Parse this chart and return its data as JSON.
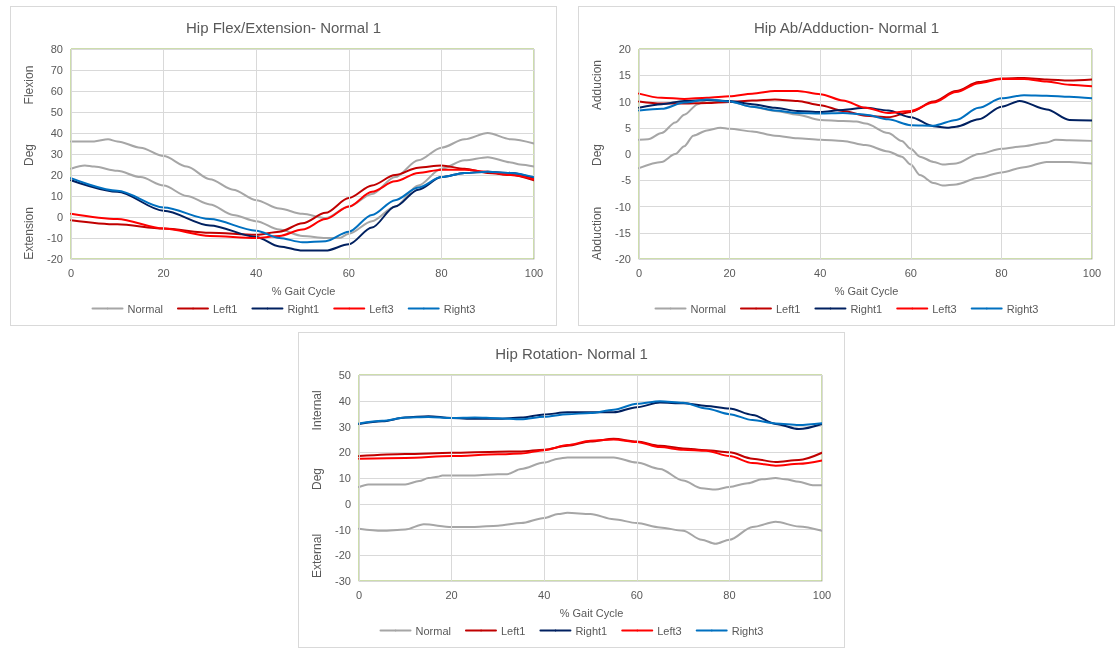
{
  "chart_data": [
    {
      "type": "line",
      "title": "Hip Flex/Extension- Normal 1",
      "xlabel": "% Gait Cycle",
      "ylabel": "Deg",
      "annotations": [
        "Flexion",
        "Extension"
      ],
      "xlim": [
        0,
        100
      ],
      "xticks": [
        0,
        20,
        40,
        60,
        80,
        100
      ],
      "ylim": [
        -20,
        80
      ],
      "yticks": [
        -20,
        -10,
        0,
        10,
        20,
        30,
        40,
        50,
        60,
        70,
        80
      ],
      "grid": true,
      "legend": "bottom",
      "line_style": "solid",
      "series": [
        {
          "name": "Normal",
          "color": "#a6a6a6",
          "x": [
            0,
            5,
            8,
            10,
            15,
            20,
            25,
            30,
            35,
            40,
            45,
            50,
            55,
            60,
            65,
            70,
            75,
            80,
            85,
            90,
            95,
            100
          ],
          "values": [
            36,
            36,
            37,
            36,
            33,
            29,
            24,
            18,
            13,
            8,
            4,
            1.5,
            -0.5,
            5,
            11,
            19,
            27,
            33,
            37,
            40,
            37,
            35
          ]
        },
        {
          "color": "#a6a6a6",
          "x": [
            0,
            3,
            5,
            10,
            15,
            20,
            25,
            30,
            35,
            40,
            45,
            50,
            55,
            58,
            60,
            65,
            70,
            75,
            80,
            85,
            90,
            95,
            97,
            100
          ],
          "values": [
            23,
            24.5,
            24,
            22,
            19,
            15,
            10,
            6,
            1,
            -2,
            -6,
            -9,
            -10,
            -10,
            -8,
            -2,
            5,
            15,
            23,
            27,
            28.5,
            26,
            25,
            24
          ]
        },
        {
          "name": "Left1",
          "color": "#c00000",
          "x": [
            0,
            10,
            20,
            30,
            40,
            45,
            50,
            55,
            60,
            65,
            70,
            75,
            80,
            85,
            90,
            95,
            100
          ],
          "values": [
            -1.5,
            -3.5,
            -5.5,
            -7.5,
            -8.5,
            -7,
            -3,
            2,
            9,
            15,
            20,
            23.5,
            24.5,
            23,
            21,
            20,
            17.5
          ]
        },
        {
          "name": "Right1",
          "color": "#002060",
          "x": [
            0,
            10,
            20,
            30,
            40,
            45,
            50,
            55,
            60,
            65,
            70,
            75,
            80,
            85,
            90,
            95,
            100
          ],
          "values": [
            17.5,
            12,
            3,
            -4,
            -9.5,
            -14,
            -16,
            -16,
            -13,
            -5,
            5,
            13,
            19,
            21,
            21.5,
            21,
            18.5
          ]
        },
        {
          "name": "Left3",
          "color": "#ff0000",
          "x": [
            0,
            10,
            20,
            30,
            40,
            45,
            50,
            55,
            60,
            65,
            70,
            75,
            80,
            85,
            90,
            95,
            100
          ],
          "values": [
            1.5,
            -1,
            -5.5,
            -9,
            -10,
            -9,
            -6,
            -1,
            5,
            12,
            17,
            21,
            22.5,
            22.5,
            21.5,
            20,
            18
          ]
        },
        {
          "name": "Right3",
          "color": "#0070c0",
          "x": [
            0,
            10,
            20,
            30,
            40,
            45,
            50,
            55,
            60,
            65,
            70,
            75,
            80,
            85,
            90,
            95,
            100
          ],
          "values": [
            18.5,
            12.5,
            4.5,
            -1,
            -6.5,
            -10,
            -12,
            -11.5,
            -7,
            1,
            8,
            14,
            19,
            21,
            21.5,
            21,
            19
          ]
        }
      ]
    },
    {
      "type": "line",
      "title": "Hip Ab/Adduction- Normal 1",
      "xlabel": "% Gait Cycle",
      "ylabel": "Deg",
      "annotations": [
        "Adducion",
        "Abduction"
      ],
      "xlim": [
        0,
        100
      ],
      "xticks": [
        0,
        20,
        40,
        60,
        80,
        100
      ],
      "ylim": [
        -20,
        20
      ],
      "yticks": [
        -20,
        -15,
        -10,
        -5,
        0,
        5,
        10,
        15,
        20
      ],
      "grid": true,
      "legend": "bottom",
      "line_style": "solid",
      "series": [
        {
          "name": "Normal",
          "color": "#a6a6a6",
          "x": [
            0,
            2,
            5,
            8,
            10,
            13,
            15,
            20,
            25,
            30,
            35,
            40,
            45,
            48,
            50,
            55,
            58,
            60,
            62,
            65,
            67,
            70,
            75,
            80,
            85,
            90,
            92,
            95,
            100
          ],
          "values": [
            2.7,
            2.8,
            4,
            6,
            7.5,
            9.5,
            10.3,
            10,
            9,
            8.2,
            7.5,
            6.5,
            6.3,
            6.2,
            5.8,
            4,
            2.5,
            1,
            -0.5,
            -1.5,
            -2,
            -1.8,
            0,
            1,
            1.5,
            2.2,
            2.7,
            2.6,
            2.5
          ]
        },
        {
          "color": "#a6a6a6",
          "x": [
            0,
            5,
            8,
            10,
            12,
            15,
            18,
            20,
            25,
            30,
            35,
            40,
            45,
            50,
            55,
            58,
            60,
            62,
            65,
            67,
            70,
            75,
            80,
            85,
            90,
            95,
            100
          ],
          "values": [
            -2.7,
            -1.5,
            0,
            1.5,
            3.5,
            4.5,
            5,
            4.8,
            4.3,
            3.5,
            3,
            2.7,
            2.5,
            1.7,
            0.5,
            -0.5,
            -2,
            -4,
            -5.5,
            -6,
            -5.8,
            -4.5,
            -3.5,
            -2.5,
            -1.5,
            -1.5,
            -1.8
          ]
        },
        {
          "name": "Left1",
          "color": "#c00000",
          "x": [
            0,
            5,
            10,
            15,
            20,
            25,
            30,
            35,
            40,
            45,
            50,
            55,
            60,
            65,
            70,
            75,
            80,
            85,
            90,
            95,
            100
          ],
          "values": [
            10,
            9.6,
            9.6,
            9.7,
            9.9,
            10.2,
            10.4,
            10.1,
            9.3,
            8.2,
            7.3,
            7,
            8,
            10,
            12,
            13.7,
            14.4,
            14.5,
            14.2,
            14,
            14.2
          ]
        },
        {
          "name": "Right1",
          "color": "#002060",
          "x": [
            0,
            5,
            10,
            15,
            20,
            25,
            30,
            35,
            40,
            45,
            50,
            55,
            60,
            65,
            68,
            70,
            75,
            80,
            84,
            90,
            95,
            100
          ],
          "values": [
            8.8,
            9.5,
            10.1,
            10.3,
            10.1,
            9.5,
            8.8,
            8.2,
            8,
            8.4,
            8.8,
            8.3,
            7,
            5.3,
            5,
            5.2,
            6.6,
            9,
            10.1,
            8.5,
            6.5,
            6.4
          ]
        },
        {
          "name": "Left3",
          "color": "#ff0000",
          "x": [
            0,
            5,
            10,
            15,
            20,
            25,
            30,
            35,
            40,
            45,
            50,
            55,
            60,
            65,
            70,
            75,
            80,
            85,
            90,
            95,
            100
          ],
          "values": [
            11.5,
            10.7,
            10.5,
            10.7,
            11,
            11.5,
            12,
            12,
            11.4,
            10.2,
            8.8,
            7.8,
            8.2,
            9.8,
            11.8,
            13.5,
            14.3,
            14.3,
            13.8,
            13.2,
            12.9
          ]
        },
        {
          "name": "Right3",
          "color": "#0070c0",
          "x": [
            0,
            5,
            10,
            15,
            20,
            25,
            30,
            35,
            40,
            45,
            50,
            55,
            60,
            65,
            70,
            75,
            80,
            85,
            90,
            95,
            100
          ],
          "values": [
            8.3,
            8.6,
            9.8,
            10.4,
            10,
            9,
            8.3,
            7.8,
            7.7,
            7.8,
            7.5,
            6.6,
            5.5,
            5.4,
            6.5,
            8.8,
            10.6,
            11.2,
            11.1,
            10.9,
            10.6
          ]
        }
      ]
    },
    {
      "type": "line",
      "title": "Hip Rotation- Normal 1",
      "xlabel": "% Gait Cycle",
      "ylabel": "Deg",
      "annotations": [
        "Internal",
        "External"
      ],
      "xlim": [
        0,
        100
      ],
      "xticks": [
        0,
        20,
        40,
        60,
        80,
        100
      ],
      "ylim": [
        -30,
        50
      ],
      "yticks": [
        -30,
        -20,
        -10,
        0,
        10,
        20,
        30,
        40,
        50
      ],
      "grid": true,
      "legend": "bottom",
      "line_style": "solid",
      "series": [
        {
          "name": "Normal",
          "color": "#a6a6a6",
          "x": [
            0,
            2,
            5,
            10,
            13,
            15,
            17,
            18,
            20,
            25,
            30,
            32,
            35,
            40,
            43,
            45,
            50,
            55,
            60,
            65,
            70,
            74,
            77,
            80,
            84,
            87,
            90,
            92,
            95,
            98,
            100
          ],
          "values": [
            6.5,
            7.5,
            7.5,
            7.5,
            8.8,
            10,
            10.5,
            11,
            11,
            11,
            11.5,
            11.5,
            13.5,
            16,
            17.5,
            18,
            18,
            18,
            16,
            13.5,
            9,
            6,
            5.5,
            6.5,
            8,
            9.5,
            10,
            9.5,
            8.5,
            7.2,
            7.2
          ]
        },
        {
          "color": "#a6a6a6",
          "x": [
            0,
            5,
            10,
            14,
            20,
            25,
            30,
            35,
            40,
            43,
            45,
            50,
            55,
            60,
            65,
            70,
            74,
            77,
            80,
            85,
            90,
            95,
            100
          ],
          "values": [
            -9.7,
            -10.5,
            -10,
            -8,
            -9,
            -9,
            -8.5,
            -7.5,
            -5.5,
            -4,
            -3.5,
            -4,
            -6,
            -7.5,
            -9.2,
            -10.5,
            -14,
            -15.5,
            -14,
            -9,
            -7,
            -8.8,
            -10.5
          ]
        },
        {
          "name": "Left1",
          "color": "#c00000",
          "x": [
            0,
            10,
            20,
            30,
            35,
            40,
            45,
            50,
            55,
            60,
            65,
            70,
            75,
            80,
            85,
            90,
            95,
            100
          ],
          "values": [
            18.5,
            19.3,
            19.8,
            20.2,
            20.3,
            21,
            22.5,
            24.2,
            25.2,
            24.2,
            22.5,
            21.5,
            20.8,
            20,
            17.5,
            16.2,
            17,
            19.8
          ]
        },
        {
          "name": "Right1",
          "color": "#002060",
          "x": [
            0,
            5,
            10,
            15,
            20,
            25,
            30,
            35,
            40,
            45,
            50,
            55,
            60,
            65,
            70,
            75,
            80,
            85,
            90,
            95,
            100
          ],
          "values": [
            31,
            32,
            33.5,
            34,
            33.3,
            33,
            33,
            33.5,
            34.7,
            35.5,
            35.5,
            35.5,
            37.5,
            39.3,
            39,
            38,
            37,
            34.5,
            31,
            29,
            31
          ]
        },
        {
          "name": "Left3",
          "color": "#ff0000",
          "x": [
            0,
            10,
            20,
            30,
            35,
            40,
            45,
            50,
            55,
            60,
            65,
            70,
            75,
            80,
            85,
            90,
            95,
            100
          ],
          "values": [
            17.5,
            17.8,
            18.5,
            19.2,
            19.5,
            20.8,
            22.8,
            24.5,
            25,
            24,
            22,
            21,
            20.6,
            18.5,
            15.8,
            14.8,
            15.5,
            16.8
          ]
        },
        {
          "name": "Right3",
          "color": "#0070c0",
          "x": [
            0,
            5,
            10,
            15,
            20,
            25,
            30,
            35,
            40,
            45,
            50,
            55,
            60,
            65,
            70,
            75,
            80,
            85,
            90,
            95,
            100
          ],
          "values": [
            31.2,
            32.2,
            33.5,
            33.7,
            33.3,
            33.5,
            33.2,
            32.8,
            33.8,
            34.8,
            35.2,
            36.5,
            38.8,
            39.8,
            39.2,
            37,
            34.8,
            32.5,
            31.2,
            30.6,
            31.3
          ]
        }
      ]
    }
  ]
}
